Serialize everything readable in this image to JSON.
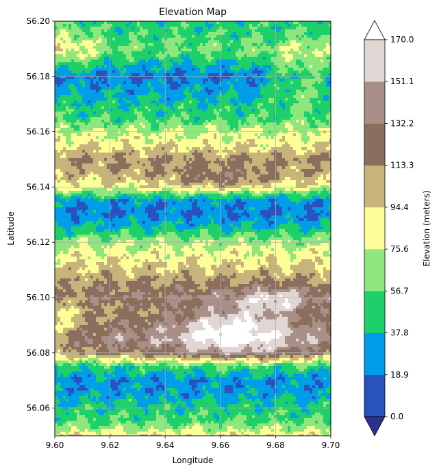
{
  "chart_data": {
    "type": "heatmap",
    "title": "Elevation Map",
    "xlabel": "Longitude",
    "ylabel": "Latitude",
    "xlim": [
      9.6,
      9.7
    ],
    "ylim": [
      56.05,
      56.2
    ],
    "grid": true,
    "x_ticks": [
      "9.60",
      "9.62",
      "9.64",
      "9.66",
      "9.68",
      "9.70"
    ],
    "y_ticks": [
      "56.06",
      "56.08",
      "56.10",
      "56.12",
      "56.14",
      "56.16",
      "56.18",
      "56.20"
    ],
    "colorbar": {
      "label": "Elevation (meters)",
      "levels": [
        0.0,
        18.9,
        37.8,
        56.7,
        75.6,
        94.4,
        113.3,
        132.2,
        151.1,
        170.0
      ],
      "tick_labels": [
        "0.0",
        "18.9",
        "37.8",
        "56.7",
        "75.6",
        "94.4",
        "113.3",
        "132.2",
        "151.1",
        "170.0"
      ],
      "colors": [
        "#2a52be",
        "#009ee8",
        "#1ed06a",
        "#8ee67c",
        "#fefe98",
        "#c6b47a",
        "#8c6e5e",
        "#a89088",
        "#e0d6d4"
      ],
      "under_color": "#2e3192",
      "over_color": "#ffffff",
      "extend": "both"
    },
    "elevation_profile": {
      "lat": [
        56.05,
        56.055,
        56.06,
        56.065,
        56.07,
        56.075,
        56.08,
        56.085,
        56.09,
        56.095,
        56.1,
        56.105,
        56.11,
        56.115,
        56.12,
        56.125,
        56.13,
        56.135,
        56.14,
        56.145,
        56.15,
        56.155,
        56.16,
        56.165,
        56.17,
        56.175,
        56.18,
        56.185,
        56.19,
        56.195,
        56.2
      ],
      "value": [
        88,
        55,
        45,
        30,
        25,
        48,
        120,
        140,
        125,
        115,
        130,
        115,
        100,
        85,
        70,
        40,
        20,
        25,
        85,
        105,
        115,
        90,
        75,
        50,
        42,
        30,
        18,
        40,
        60,
        50,
        45
      ]
    }
  }
}
